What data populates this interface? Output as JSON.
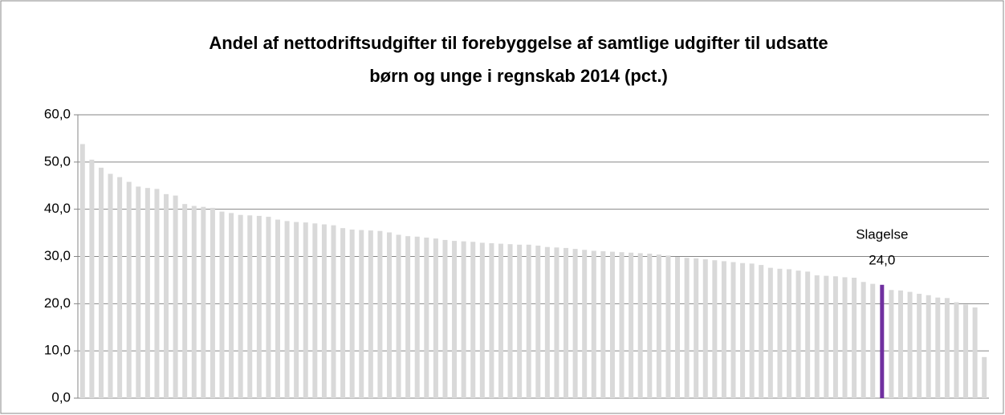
{
  "chart_data": {
    "type": "bar",
    "title": [
      "Andel af nettodriftsudgifter til forebyggelse af samtlige udgifter til udsatte",
      "børn og unge i regnskab 2014 (pct.)"
    ],
    "categories": [
      null,
      null,
      null,
      null,
      null,
      null,
      null,
      null,
      null,
      null,
      null,
      null,
      null,
      null,
      null,
      null,
      null,
      null,
      null,
      null,
      null,
      null,
      null,
      null,
      null,
      null,
      null,
      null,
      null,
      null,
      null,
      null,
      null,
      null,
      null,
      null,
      null,
      null,
      null,
      null,
      null,
      null,
      null,
      null,
      null,
      null,
      null,
      null,
      null,
      null,
      null,
      null,
      null,
      null,
      null,
      null,
      null,
      null,
      null,
      null,
      null,
      null,
      null,
      null,
      null,
      null,
      null,
      null,
      null,
      null,
      null,
      null,
      null,
      null,
      null,
      null,
      null,
      null,
      null,
      null,
      null,
      null,
      null,
      null,
      null,
      null,
      "Slagelse",
      null,
      null,
      null,
      null,
      null,
      null,
      null,
      null,
      null,
      null,
      null
    ],
    "values": [
      53.8,
      50.5,
      48.8,
      47.5,
      46.8,
      45.8,
      44.8,
      44.5,
      44.3,
      43.2,
      42.9,
      41.1,
      40.7,
      40.5,
      40.3,
      39.5,
      39.2,
      38.8,
      38.7,
      38.6,
      38.4,
      37.8,
      37.5,
      37.3,
      37.2,
      37.0,
      36.8,
      36.6,
      36.0,
      35.7,
      35.6,
      35.5,
      35.4,
      35.1,
      34.6,
      34.3,
      34.2,
      34.0,
      33.8,
      33.5,
      33.3,
      33.2,
      33.1,
      32.9,
      32.8,
      32.7,
      32.6,
      32.5,
      32.5,
      32.3,
      32.0,
      31.9,
      31.8,
      31.6,
      31.4,
      31.2,
      31.1,
      31.0,
      30.9,
      30.8,
      30.7,
      30.6,
      30.4,
      30.2,
      29.9,
      29.7,
      29.6,
      29.4,
      29.2,
      29.0,
      28.8,
      28.6,
      28.5,
      28.2,
      27.6,
      27.4,
      27.3,
      27.0,
      26.8,
      26.0,
      25.9,
      25.8,
      25.6,
      25.5,
      24.6,
      24.2,
      24.0,
      22.9,
      22.8,
      22.5,
      22.1,
      21.8,
      21.3,
      21.2,
      20.3,
      19.8,
      19.2,
      8.7
    ],
    "value_labels": [
      null,
      null,
      null,
      null,
      null,
      null,
      null,
      null,
      null,
      null,
      null,
      null,
      null,
      null,
      null,
      null,
      null,
      null,
      null,
      null,
      null,
      null,
      null,
      null,
      null,
      null,
      null,
      null,
      null,
      null,
      null,
      null,
      null,
      null,
      null,
      null,
      null,
      null,
      null,
      null,
      null,
      null,
      null,
      null,
      null,
      null,
      null,
      null,
      null,
      null,
      null,
      null,
      null,
      null,
      null,
      null,
      null,
      null,
      null,
      null,
      null,
      null,
      null,
      null,
      null,
      null,
      null,
      null,
      null,
      null,
      null,
      null,
      null,
      null,
      null,
      null,
      null,
      null,
      null,
      null,
      null,
      null,
      null,
      null,
      null,
      null,
      "24,0",
      null,
      null,
      null,
      null,
      null,
      null,
      null,
      null,
      null,
      null,
      null
    ],
    "color": "#d9d9d9",
    "highlight_color": "#7030a0",
    "ylim": [
      0,
      60
    ],
    "yticks": [
      {
        "value": 0,
        "label": "0,0"
      },
      {
        "value": 10,
        "label": "10,0"
      },
      {
        "value": 20,
        "label": "20,0"
      },
      {
        "value": 30,
        "label": "30,0"
      },
      {
        "value": 40,
        "label": "40,0"
      },
      {
        "value": 50,
        "label": "50,0"
      },
      {
        "value": 60,
        "label": "60,0"
      }
    ],
    "grid": true
  }
}
